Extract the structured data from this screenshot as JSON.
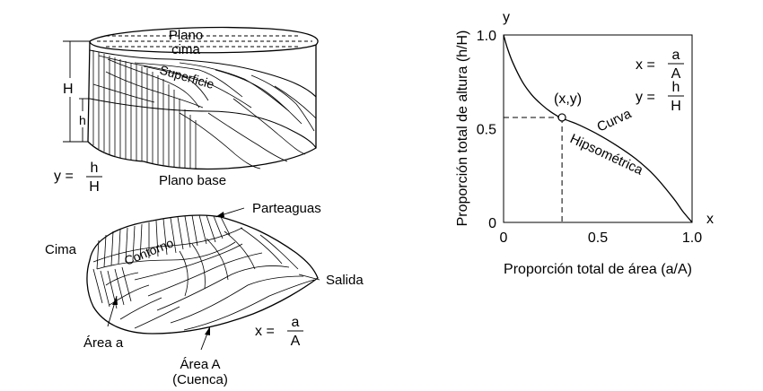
{
  "block_diagram": {
    "plano_cima_1": "Plano",
    "plano_cima_2": "cima",
    "superficie": "Superficie",
    "h_upper": "H",
    "h_lower": "h",
    "y_eq_lhs": "y =",
    "y_eq_num": "h",
    "y_eq_den": "H",
    "plano_base": "Plano base"
  },
  "basin_map": {
    "parteaguas": "Parteaguas",
    "cima": "Cima",
    "contorno": "Contorno",
    "salida": "Salida",
    "area_a": "Área a",
    "area_A_1": "Área A",
    "area_A_2": "(Cuenca)",
    "x_eq_lhs": "x =",
    "x_eq_num": "a",
    "x_eq_den": "A"
  },
  "chart": {
    "y_axis_symbol": "y",
    "x_axis_symbol": "x",
    "ylabel": "Proporción total de altura (h/H)",
    "xlabel": "Proporción total de área (a/A)",
    "point_label": "(x,y)",
    "curve_label_1": "Curva",
    "curve_label_2": "Hipsométrica",
    "eq_x_lhs": "x =",
    "eq_x_num": "a",
    "eq_x_den": "A",
    "eq_y_lhs": "y =",
    "eq_y_num": "h",
    "eq_y_den": "H"
  },
  "chart_data": {
    "type": "line",
    "xlabel": "Proporción total de área (a/A)",
    "ylabel": "Proporción total de altura (h/H)",
    "xlim": [
      0,
      1
    ],
    "ylim": [
      0,
      1
    ],
    "x_ticks": [
      "0",
      "0.5",
      "1.0"
    ],
    "x_tick_values": [
      0,
      0.5,
      1.0
    ],
    "y_ticks": [
      "0",
      "0.5",
      "1.0"
    ],
    "y_tick_values": [
      0,
      0.5,
      1.0
    ],
    "grid": false,
    "series": [
      {
        "x": [
          0,
          0.02,
          0.05,
          0.1,
          0.15,
          0.2,
          0.25,
          0.3,
          0.35,
          0.4,
          0.5,
          0.6,
          0.7,
          0.8,
          0.9,
          0.95,
          1.0
        ],
        "y": [
          1.0,
          0.93,
          0.85,
          0.75,
          0.68,
          0.63,
          0.59,
          0.56,
          0.54,
          0.52,
          0.47,
          0.41,
          0.34,
          0.25,
          0.13,
          0.06,
          0.0
        ]
      }
    ],
    "highlight_point": {
      "x": 0.31,
      "y": 0.56,
      "label": "(x,y)"
    },
    "colors": {
      "line": "#000000",
      "background": "#ffffff"
    }
  }
}
